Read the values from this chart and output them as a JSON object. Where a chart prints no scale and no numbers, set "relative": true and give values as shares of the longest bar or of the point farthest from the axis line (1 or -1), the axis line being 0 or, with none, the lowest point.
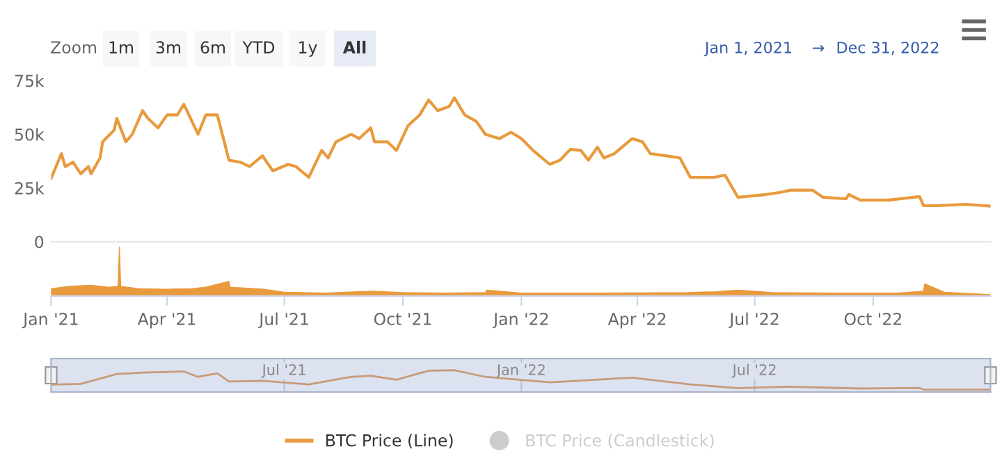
{
  "chart_data": [
    {
      "type": "line",
      "annotations": [
        "Zoom",
        "1m",
        "3m",
        "6m",
        "YTD",
        "1y",
        "All",
        "Jan 1, 2021",
        "→",
        "Dec 31, 2022"
      ],
      "xlim": [
        "2021-01-01",
        "2022-12-31"
      ],
      "ylim": [
        0,
        75000
      ],
      "yticks": [
        {
          "value": 0,
          "label": "0"
        },
        {
          "value": 25000,
          "label": "25k"
        },
        {
          "value": 50000,
          "label": "50k"
        },
        {
          "value": 75000,
          "label": "75k"
        }
      ],
      "tick_labels": "y",
      "grid": false,
      "legend": "bottom",
      "series": [
        {
          "name": "BTC Price (Line)",
          "color": "#e89a3c",
          "x": [
            "2021-01-01",
            "2021-01-09",
            "2021-01-12",
            "2021-01-18",
            "2021-01-24",
            "2021-01-30",
            "2021-02-01",
            "2021-02-08",
            "2021-02-10",
            "2021-02-19",
            "2021-02-21",
            "2021-02-28",
            "2021-03-05",
            "2021-03-13",
            "2021-03-17",
            "2021-03-25",
            "2021-04-01",
            "2021-04-09",
            "2021-04-14",
            "2021-04-25",
            "2021-05-01",
            "2021-05-10",
            "2021-05-19",
            "2021-05-28",
            "2021-06-04",
            "2021-06-14",
            "2021-06-22",
            "2021-07-04",
            "2021-07-10",
            "2021-07-20",
            "2021-07-30",
            "2021-08-04",
            "2021-08-10",
            "2021-08-22",
            "2021-08-28",
            "2021-09-06",
            "2021-09-09",
            "2021-09-19",
            "2021-09-26",
            "2021-10-05",
            "2021-10-14",
            "2021-10-21",
            "2021-10-28",
            "2021-11-06",
            "2021-11-10",
            "2021-11-18",
            "2021-11-27",
            "2021-12-04",
            "2021-12-15",
            "2021-12-24",
            "2022-01-01",
            "2022-01-10",
            "2022-01-23",
            "2022-01-31",
            "2022-02-08",
            "2022-02-16",
            "2022-02-22",
            "2022-03-01",
            "2022-03-06",
            "2022-03-14",
            "2022-03-28",
            "2022-04-05",
            "2022-04-11",
            "2022-04-23",
            "2022-05-04",
            "2022-05-12",
            "2022-05-31",
            "2022-06-08",
            "2022-06-18",
            "2022-07-10",
            "2022-07-21",
            "2022-07-29",
            "2022-08-15",
            "2022-08-23",
            "2022-09-10",
            "2022-09-12",
            "2022-09-21",
            "2022-10-13",
            "2022-11-06",
            "2022-11-09",
            "2022-11-20",
            "2022-12-12",
            "2022-12-31"
          ],
          "values": [
            29500,
            41000,
            35000,
            37000,
            31600,
            35000,
            31600,
            39000,
            46500,
            52000,
            57500,
            46500,
            50000,
            61000,
            57500,
            53000,
            59000,
            59000,
            64000,
            50000,
            59000,
            59000,
            38000,
            37000,
            35000,
            40000,
            33000,
            36000,
            35000,
            30000,
            42500,
            39000,
            46500,
            50000,
            48000,
            53000,
            46500,
            46500,
            42500,
            54000,
            59000,
            66000,
            61000,
            63000,
            67000,
            59000,
            56000,
            50000,
            48000,
            51000,
            48000,
            42500,
            36000,
            38000,
            43000,
            42500,
            38000,
            44000,
            39000,
            41000,
            48000,
            46500,
            41000,
            40000,
            39000,
            30000,
            30000,
            31000,
            20700,
            22000,
            23000,
            24000,
            24000,
            20700,
            20000,
            22000,
            19400,
            19400,
            21000,
            16800,
            16800,
            17400,
            16600
          ]
        },
        {
          "name": "BTC Price (Candlestick)",
          "type": "candlestick",
          "color": "#cccccc"
        }
      ]
    },
    {
      "type": "area",
      "relative": true,
      "tick_labels": "x",
      "grid": false,
      "xlim": [
        "2021-01-01",
        "2022-12-31"
      ],
      "xticks": [
        {
          "value": "2021-01-01",
          "label": "Jan '21"
        },
        {
          "value": "2021-04-01",
          "label": "Apr '21"
        },
        {
          "value": "2021-07-01",
          "label": "Jul '21"
        },
        {
          "value": "2021-10-01",
          "label": "Oct '21"
        },
        {
          "value": "2022-01-01",
          "label": "Jan '22"
        },
        {
          "value": "2022-04-01",
          "label": "Apr '22"
        },
        {
          "value": "2022-07-01",
          "label": "Jul '22"
        },
        {
          "value": "2022-10-01",
          "label": "Oct '22"
        }
      ],
      "series": [
        {
          "color": "#e89a3c",
          "x": [
            "2021-01-01",
            "2021-01-15",
            "2021-02-01",
            "2021-02-15",
            "2021-02-22",
            "2021-02-23",
            "2021-02-24",
            "2021-03-10",
            "2021-04-01",
            "2021-04-20",
            "2021-05-01",
            "2021-05-19",
            "2021-05-20",
            "2021-06-15",
            "2021-07-01",
            "2021-08-01",
            "2021-09-07",
            "2021-10-01",
            "2021-11-01",
            "2021-12-04",
            "2021-12-05",
            "2022-01-01",
            "2022-03-01",
            "2022-05-10",
            "2022-06-01",
            "2022-06-18",
            "2022-07-15",
            "2022-09-01",
            "2022-10-20",
            "2022-11-09",
            "2022-11-10",
            "2022-11-25",
            "2022-12-31"
          ],
          "values": [
            0.15,
            0.2,
            0.22,
            0.18,
            0.2,
            1,
            0.2,
            0.15,
            0.14,
            0.15,
            0.18,
            0.3,
            0.18,
            0.14,
            0.08,
            0.06,
            0.1,
            0.07,
            0.06,
            0.07,
            0.12,
            0.06,
            0.06,
            0.07,
            0.09,
            0.12,
            0.07,
            0.06,
            0.06,
            0.1,
            0.25,
            0.08,
            0.03
          ]
        }
      ]
    },
    {
      "type": "line",
      "relative": true,
      "tick_labels": "x",
      "grid": "x",
      "xlim": [
        "2021-01-01",
        "2022-12-31"
      ],
      "xticks": [
        {
          "value": "2021-07-01",
          "label": "Jul '21"
        },
        {
          "value": "2022-01-01",
          "label": "Jan '22"
        },
        {
          "value": "2022-07-01",
          "label": "Jul '22"
        }
      ],
      "series": [
        {
          "color": "#c89a7a",
          "x": [
            "2021-01-01",
            "2021-01-24",
            "2021-02-21",
            "2021-03-13",
            "2021-04-14",
            "2021-04-25",
            "2021-05-10",
            "2021-05-19",
            "2021-06-14",
            "2021-07-20",
            "2021-08-22",
            "2021-09-06",
            "2021-09-26",
            "2021-10-21",
            "2021-11-10",
            "2021-12-04",
            "2022-01-23",
            "2022-03-28",
            "2022-05-12",
            "2022-06-18",
            "2022-07-29",
            "2022-09-21",
            "2022-11-06",
            "2022-11-09",
            "2022-12-31"
          ],
          "values": [
            0.26,
            0.3,
            0.81,
            0.88,
            0.94,
            0.66,
            0.84,
            0.42,
            0.46,
            0.27,
            0.66,
            0.72,
            0.51,
            0.98,
            1,
            0.66,
            0.38,
            0.62,
            0.27,
            0.08,
            0.15,
            0.06,
            0.09,
            0.004,
            0
          ]
        }
      ]
    }
  ]
}
